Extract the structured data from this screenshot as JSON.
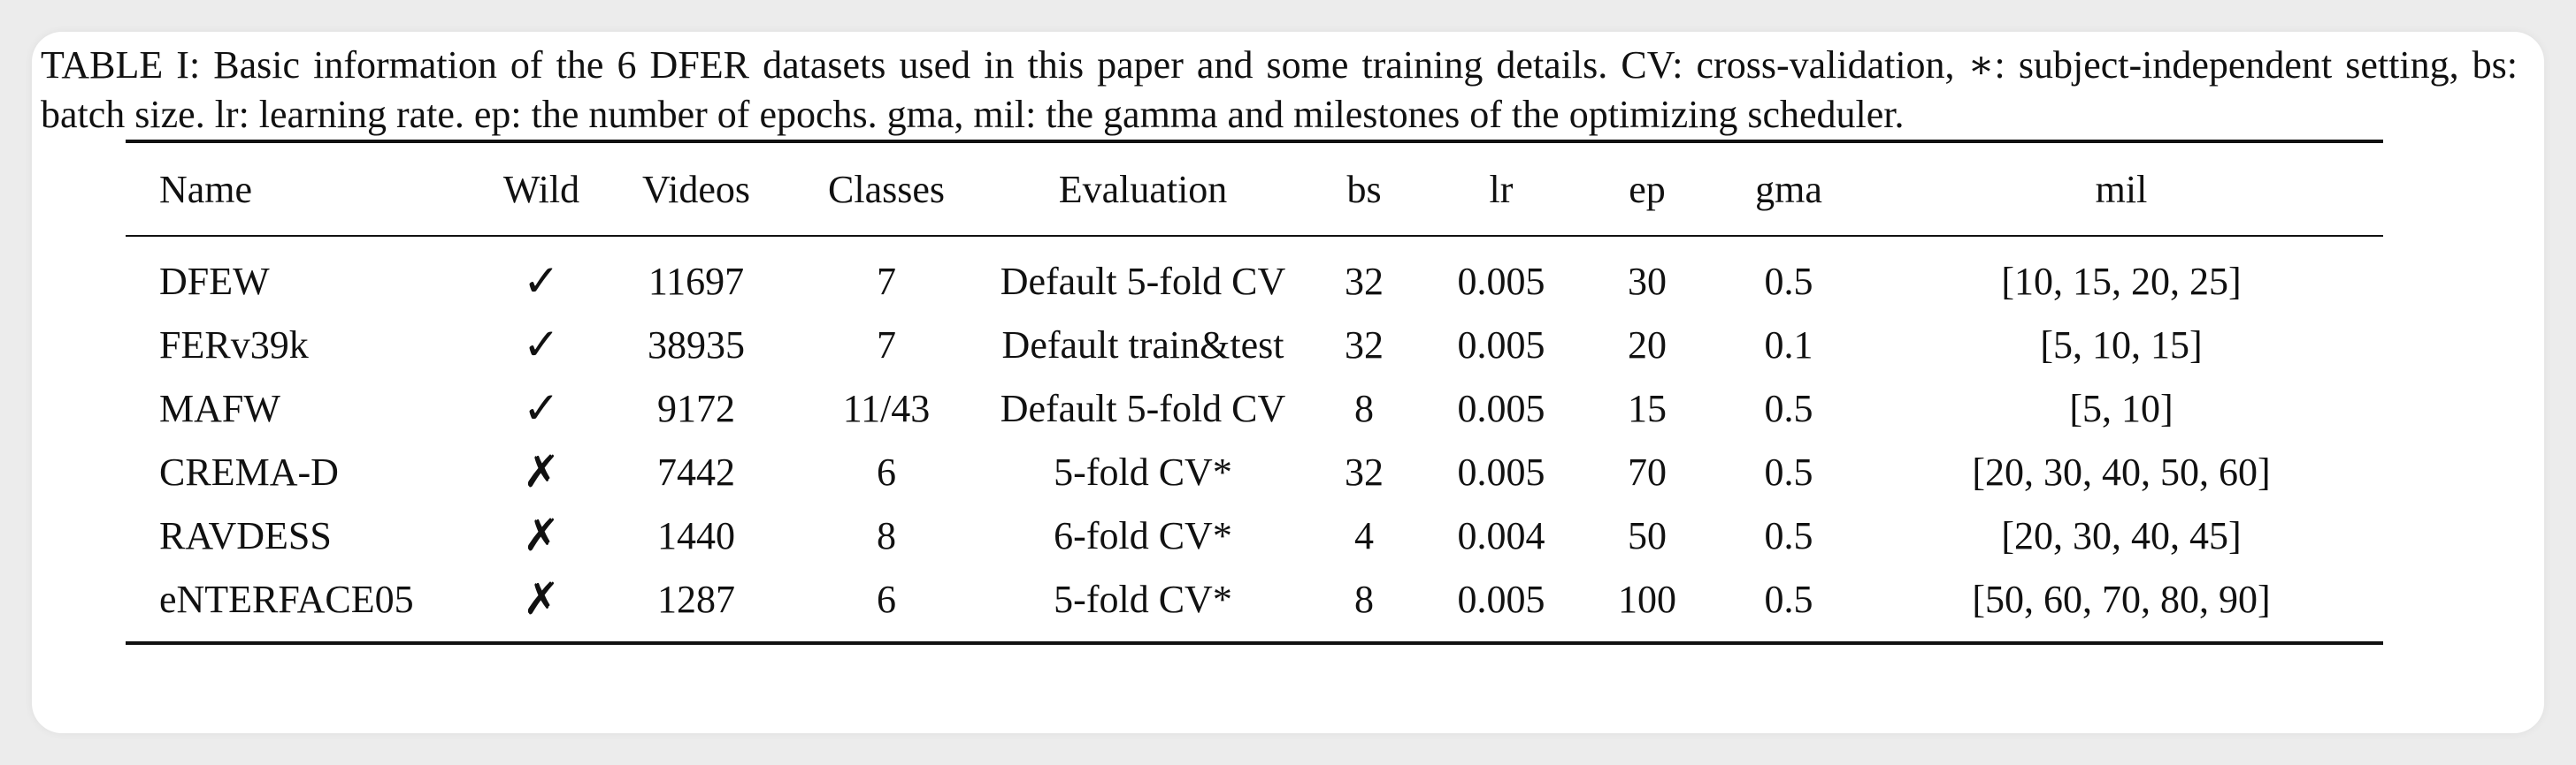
{
  "caption": "TABLE I: Basic information of the 6 DFER datasets used in this paper and some training details. CV: cross-validation, ∗: subject-independent setting, bs: batch size. lr: learning rate. ep: the number of epochs. gma, mil: the gamma and milestones of the optimizing scheduler.",
  "table": {
    "headers": [
      "Name",
      "Wild",
      "Videos",
      "Classes",
      "Evaluation",
      "bs",
      "lr",
      "ep",
      "gma",
      "mil"
    ],
    "rows": [
      [
        "DFEW",
        "✓",
        "11697",
        "7",
        "Default 5-fold CV",
        "32",
        "0.005",
        "30",
        "0.5",
        "[10, 15, 20, 25]"
      ],
      [
        "FERv39k",
        "✓",
        "38935",
        "7",
        "Default train&test",
        "32",
        "0.005",
        "20",
        "0.1",
        "[5, 10, 15]"
      ],
      [
        "MAFW",
        "✓",
        "9172",
        "11/43",
        "Default 5-fold CV",
        "8",
        "0.005",
        "15",
        "0.5",
        "[5, 10]"
      ],
      [
        "CREMA-D",
        "✗",
        "7442",
        "6",
        "5-fold CV*",
        "32",
        "0.005",
        "70",
        "0.5",
        "[20, 30, 40, 50, 60]"
      ],
      [
        "RAVDESS",
        "✗",
        "1440",
        "8",
        "6-fold CV*",
        "4",
        "0.004",
        "50",
        "0.5",
        "[20, 30, 40, 45]"
      ],
      [
        "eNTERFACE05",
        "✗",
        "1287",
        "6",
        "5-fold CV*",
        "8",
        "0.005",
        "100",
        "0.5",
        "[50, 60, 70, 80, 90]"
      ]
    ]
  }
}
